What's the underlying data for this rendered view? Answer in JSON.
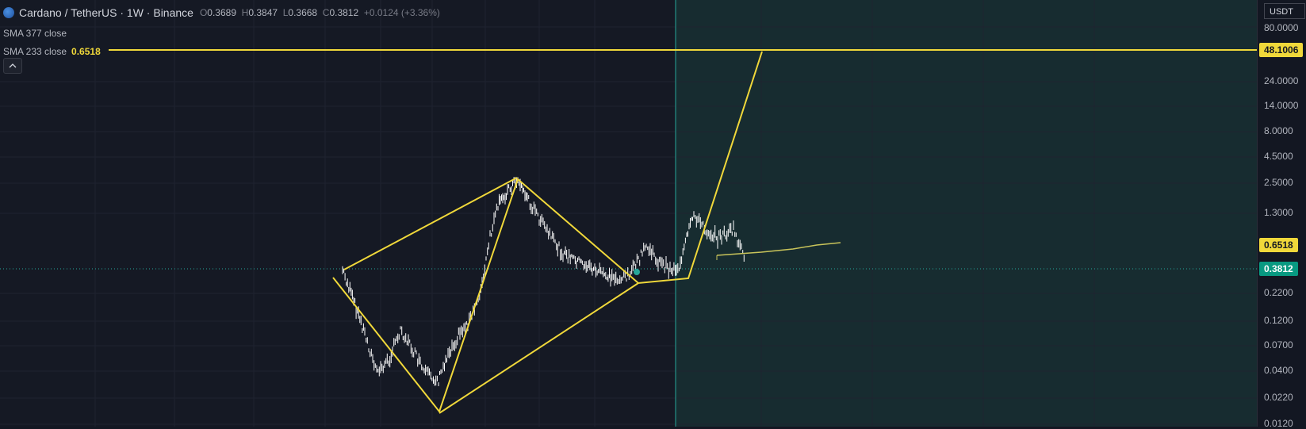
{
  "symbol": {
    "title": "Cardano / TetherUS · 1W · Binance",
    "icon": "cardano-coin-icon",
    "open_label": "O",
    "open": "0.3689",
    "high_label": "H",
    "high": "0.3847",
    "low_label": "L",
    "low": "0.3668",
    "close_label": "C",
    "close": "0.3812",
    "change": "+0.0124 (+3.36%)"
  },
  "indicators": [
    {
      "label": "SMA 377 close",
      "value": ""
    },
    {
      "label": "SMA 233 close",
      "value": "0.6518"
    }
  ],
  "collapse_icon": "chevron-up-icon",
  "price_scale": {
    "currency": "USDT",
    "ticks": [
      "80.0000",
      "24.0000",
      "14.0000",
      "8.0000",
      "4.5000",
      "2.5000",
      "1.3000",
      "0.2200",
      "0.1200",
      "0.0700",
      "0.0400",
      "0.0220",
      "0.0120"
    ],
    "badges": {
      "target": "48.1006",
      "sma": "0.6518",
      "last": "0.3812"
    }
  },
  "colors": {
    "background": "#131722",
    "accent_line": "#f0d83a",
    "last_price": "#089981",
    "candles": "#ffffff",
    "future_zone": "#172c30"
  }
}
